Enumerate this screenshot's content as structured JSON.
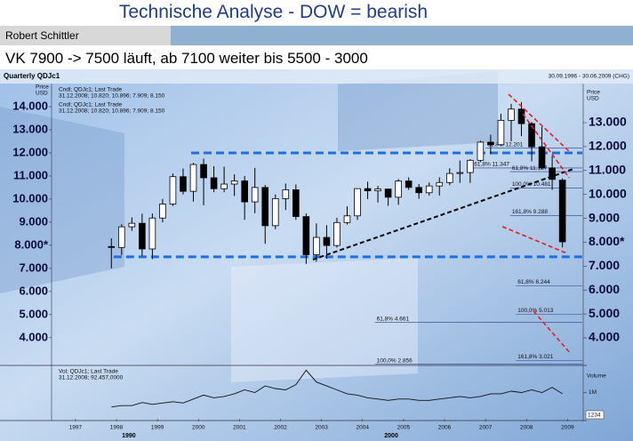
{
  "header": {
    "title": "Technische Analyse - DOW = bearish",
    "author": "Robert Schittler",
    "subtitle": "VK 7900 -> 7500 läuft, ab 7100 weiter bis 5500 - 3000"
  },
  "chart_data": {
    "type": "candlestick",
    "title": "Quarterly QDJc1",
    "date_range": "30.09.1996 - 30.06.2009 (CHG)",
    "y_label": [
      "Price",
      "USD"
    ],
    "y2_label": [
      "Price",
      "USD"
    ],
    "legend_lines": [
      "Cndl; QDJc1; Last Trade",
      "31.12.2008; 10.820; 10.896; 7.909; 8.150",
      "Cndl; QDJc1; Last Trade",
      "31.12.2008; 10.820; 10.896; 7.909; 8.150"
    ],
    "color_up": "#ffffff",
    "color_down": "#000000",
    "x": [
      1997.875,
      1998.125,
      1998.375,
      1998.625,
      1998.875,
      1999.125,
      1999.375,
      1999.625,
      1999.875,
      2000.125,
      2000.375,
      2000.625,
      2000.875,
      2001.125,
      2001.375,
      2001.625,
      2001.875,
      2002.125,
      2002.375,
      2002.625,
      2002.875,
      2003.125,
      2003.375,
      2003.625,
      2003.875,
      2004.125,
      2004.375,
      2004.625,
      2004.875,
      2005.125,
      2005.375,
      2005.625,
      2005.875,
      2006.125,
      2006.375,
      2006.625,
      2006.875,
      2007.125,
      2007.375,
      2007.625,
      2007.875,
      2008.125,
      2008.375,
      2008.625,
      2008.875
    ],
    "open": [
      7945,
      7908,
      8800,
      8952,
      7843,
      9181,
      9786,
      10970,
      10337,
      11497,
      10922,
      10448,
      10650,
      10787,
      9879,
      10502,
      8848,
      10021,
      10404,
      9243,
      7592,
      8342,
      7992,
      8985,
      9275,
      10454,
      10357,
      10435,
      10080,
      10783,
      10504,
      10275,
      10569,
      10718,
      11109,
      11150,
      11679,
      12463,
      12354,
      13409,
      13896,
      13265,
      12263,
      11350,
      10820
    ],
    "high": [
      8300,
      8906,
      9211,
      9367,
      9374,
      10006,
      11107,
      11326,
      11568,
      11750,
      11425,
      11401,
      11072,
      11000,
      11350,
      10610,
      10200,
      10673,
      10635,
      9379,
      8950,
      8869,
      9188,
      9686,
      10462,
      10753,
      10570,
      10400,
      10868,
      10940,
      10650,
      10720,
      10939,
      11335,
      11670,
      11727,
      12529,
      12786,
      13692,
      14121,
      14198,
      13338,
      13136,
      11867,
      10896
    ],
    "low": [
      7000,
      7580,
      8627,
      7539,
      7400,
      8994,
      9700,
      10200,
      9885,
      9731,
      10300,
      10300,
      10136,
      9106,
      9390,
      8062,
      8700,
      9529,
      9100,
      7197,
      7286,
      7416,
      7900,
      8900,
      9100,
      10000,
      9852,
      9708,
      9750,
      10400,
      10012,
      10150,
      10156,
      10600,
      10700,
      10700,
      11600,
      11940,
      12300,
      12500,
      12725,
      11634,
      11300,
      10400,
      7909
    ],
    "close": [
      7908,
      8800,
      8952,
      7843,
      9181,
      9786,
      10970,
      10337,
      11497,
      10922,
      10448,
      10650,
      10787,
      9879,
      10502,
      8848,
      10021,
      10404,
      9243,
      7592,
      8342,
      7992,
      8985,
      9275,
      10454,
      10357,
      10435,
      10080,
      10783,
      10504,
      10275,
      10569,
      10718,
      11109,
      11150,
      11679,
      12463,
      12354,
      13409,
      13896,
      13265,
      12263,
      11350,
      10851,
      8150
    ],
    "xlim": [
      1996.46,
      2009.36
    ],
    "xticks": [
      1997,
      1998,
      1999,
      2000,
      2001,
      2002,
      2003,
      2004,
      2005,
      2006,
      2007,
      2008,
      2009
    ],
    "era_labels": [
      {
        "value": 1998.3,
        "label": "1990"
      },
      {
        "value": 2004.7,
        "label": "2000"
      }
    ],
    "ylim": [
      2800,
      15000
    ],
    "yticks": [
      {
        "value": 14000,
        "label": "14.000"
      },
      {
        "value": 13000,
        "label": "13.000"
      },
      {
        "value": 12000,
        "label": "12.000"
      },
      {
        "value": 11000,
        "label": "11.000"
      },
      {
        "value": 10000,
        "label": "10.000"
      },
      {
        "value": 9000,
        "label": "9.000"
      },
      {
        "value": 8000,
        "label": "8.000*"
      },
      {
        "value": 7000,
        "label": "7.000"
      },
      {
        "value": 6000,
        "label": "6.000"
      },
      {
        "value": 5000,
        "label": "5.000"
      },
      {
        "value": 4000,
        "label": "4.000"
      }
    ],
    "y2lim": [
      2847,
      14636
    ],
    "y2ticks": [
      {
        "value": 13000,
        "label": "13.000"
      },
      {
        "value": 12000,
        "label": "12.000"
      },
      {
        "value": 11000,
        "label": "11.000"
      },
      {
        "value": 10000,
        "label": "10.000"
      },
      {
        "value": 9000,
        "label": "9.000"
      },
      {
        "value": 8000,
        "label": "8.000*"
      },
      {
        "value": 7000,
        "label": "7.000"
      },
      {
        "value": 6000,
        "label": "6.000"
      },
      {
        "value": 5000,
        "label": "5.000"
      },
      {
        "value": 4000,
        "label": "4.000"
      }
    ],
    "support_color": "#1e6fe0",
    "support_lines": [
      {
        "value": 12000,
        "x": [
          1999.82,
          2009.36
        ]
      },
      {
        "value": 7500,
        "x": [
          1997.93,
          2009.36
        ]
      }
    ],
    "trend_color": "#000000",
    "trend_line": {
      "x": [
        2002.79,
        2009.15
      ],
      "y": [
        7380,
        11310
      ]
    },
    "channel_color": "#e0202a",
    "channel_lines": [
      {
        "x": [
          2007.56,
          2009.08
        ],
        "y": [
          14540,
          12000
        ]
      },
      {
        "x": [
          2007.91,
          2009.04
        ],
        "y": [
          13690,
          10920
        ]
      },
      {
        "x": [
          2007.41,
          2008.99
        ],
        "y": [
          8810,
          7650
        ]
      },
      {
        "x": [
          2008.17,
          2009.04
        ],
        "y": [
          5150,
          3380
        ]
      }
    ],
    "fib_color": "#2a3f8a",
    "fib_levels": [
      {
        "value": 12201,
        "x": 2007.0,
        "label": "61,8%  12.201"
      },
      {
        "value": 11347,
        "x": 2006.6,
        "label": "161,8%  11.347"
      },
      {
        "value": 11187,
        "x": 2007.6,
        "label": "61,8%  11.187"
      },
      {
        "value": 10481,
        "x": 2007.6,
        "label": "100,0%  10.481"
      },
      {
        "value": 9288,
        "x": 2007.6,
        "label": "161,8%  9.288"
      },
      {
        "value": 6244,
        "x": 2007.74,
        "label": "61,8%  6.244"
      },
      {
        "value": 5013,
        "x": 2007.74,
        "label": "100,0%  5.013"
      },
      {
        "value": 4661,
        "x": 2004.3,
        "label": "61,8%  4.661"
      },
      {
        "value": 3021,
        "x": 2007.74,
        "label": "161,8%  3.021"
      },
      {
        "value": 2856,
        "x": 2004.3,
        "label": "100,0%  2.856"
      }
    ],
    "volume": {
      "legend": [
        "Vol; QDJc1; Last Trade",
        "31.12.2008; 92.457,0000"
      ],
      "label": "Volume",
      "badge": "1234",
      "color": "#111111",
      "values": [
        0.45,
        0.5,
        0.5,
        0.62,
        0.55,
        0.6,
        0.65,
        0.6,
        0.75,
        0.9,
        0.8,
        0.85,
        0.95,
        1.1,
        1.0,
        1.25,
        1.15,
        1.1,
        1.3,
        1.85,
        1.4,
        1.25,
        1.1,
        0.95,
        0.9,
        0.8,
        0.75,
        0.7,
        0.75,
        0.75,
        0.7,
        0.7,
        0.75,
        0.8,
        0.85,
        0.8,
        0.85,
        0.95,
        0.95,
        1.05,
        1.0,
        1.1,
        1.0,
        1.2,
        0.95
      ],
      "ylim": [
        0,
        1.93
      ],
      "yticks": [
        {
          "value": 1,
          "label": "1M"
        }
      ]
    }
  }
}
